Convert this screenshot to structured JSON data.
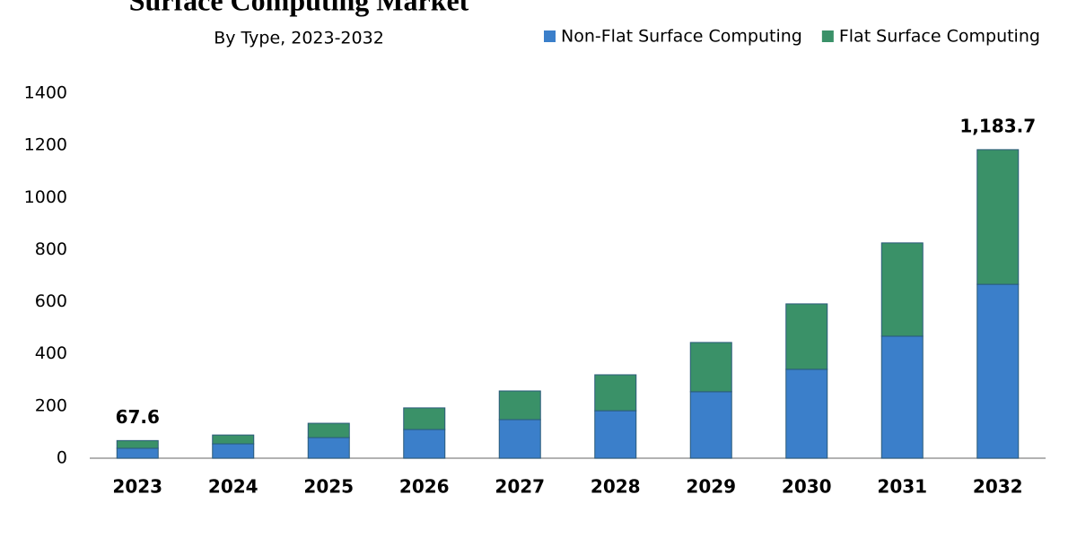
{
  "chart_data": {
    "type": "stacked_bar",
    "title": "Surface Computing Market",
    "subtitle": "By Type, 2023-2032",
    "categories": [
      "2023",
      "2024",
      "2025",
      "2026",
      "2027",
      "2028",
      "2029",
      "2030",
      "2031",
      "2032"
    ],
    "series": [
      {
        "name": "Non-Flat Surface Computing",
        "color": "#3b7fca",
        "values": [
          38,
          55,
          79,
          110,
          148,
          182,
          255,
          341,
          468,
          667
        ]
      },
      {
        "name": "Flat Surface Computing",
        "color": "#3a9168",
        "values": [
          29.6,
          34,
          55,
          83,
          110,
          138,
          189,
          251,
          358,
          516.7
        ]
      }
    ],
    "annotations": [
      {
        "category": "2023",
        "value": 67.6
      },
      {
        "category": "2032",
        "value": 1183.7,
        "label": "1,183.7"
      }
    ],
    "ylim": [
      0,
      1400
    ],
    "yticks": [
      0,
      200,
      400,
      600,
      800,
      1000,
      1200,
      1400
    ],
    "grid": false,
    "legend": "top-right"
  }
}
